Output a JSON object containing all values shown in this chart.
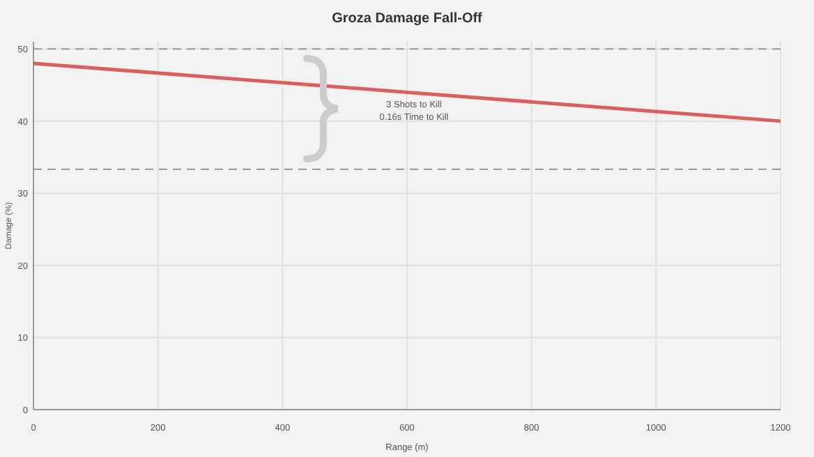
{
  "chart_data": {
    "type": "line",
    "title": "Groza Damage Fall-Off",
    "xlabel": "Range (m)",
    "ylabel": "Damage (%)",
    "x": [
      0,
      600,
      1200
    ],
    "series": [
      {
        "color": "#d9605f",
        "values": [
          48,
          44,
          40
        ]
      }
    ],
    "xlim": [
      0,
      1200
    ],
    "xticks": [
      0,
      200,
      400,
      600,
      800,
      1000,
      1200
    ],
    "ylim": [
      0,
      51
    ],
    "yticks": [
      0,
      10,
      20,
      30,
      40,
      50
    ],
    "grid": true,
    "marker": "none",
    "line_style": "solid",
    "ref_lines": [
      {
        "axis": "y",
        "value": 50,
        "color": "#999999",
        "line_style": "dashed"
      },
      {
        "axis": "y",
        "value": 33.33,
        "color": "#999999",
        "line_style": "dashed"
      }
    ],
    "annotations": [
      "3 Shots to Kill",
      "0.16s Time to Kill"
    ]
  }
}
